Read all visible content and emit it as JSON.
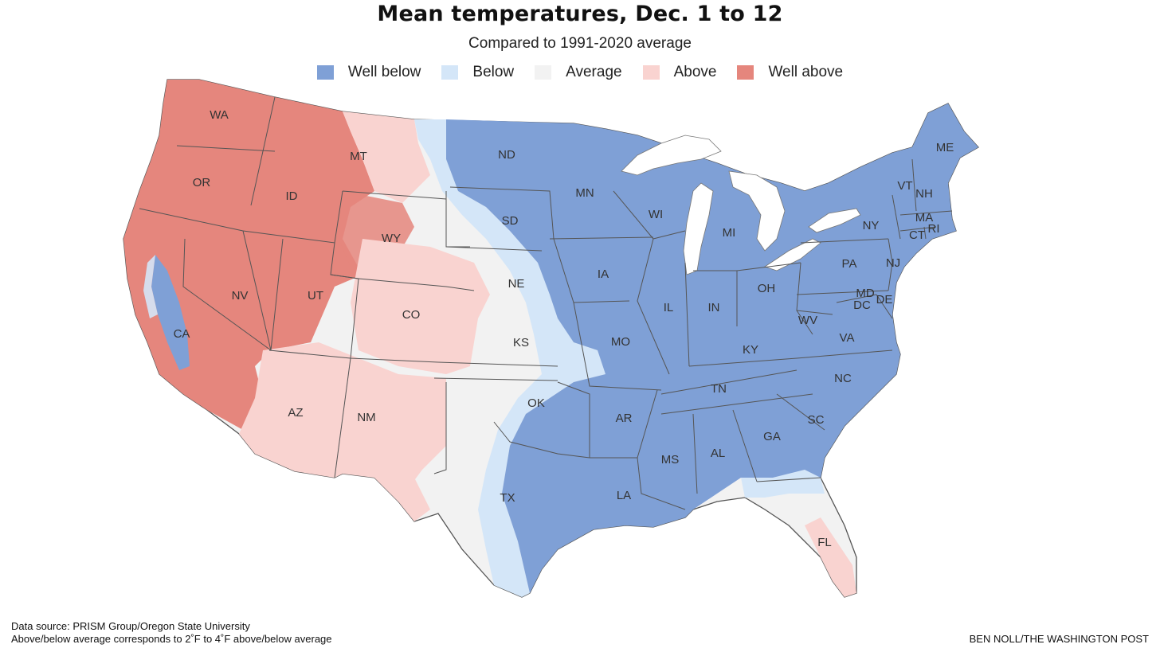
{
  "title": "Mean temperatures, Dec. 1 to 12",
  "subtitle": "Compared to 1991-2020 average",
  "colors": {
    "well_below": "#7fa0d6",
    "below": "#d4e6f8",
    "average": "#f2f2f2",
    "above": "#f9d3d0",
    "well_above": "#e5867d",
    "lakes": "#ffffff",
    "borders": "#555555"
  },
  "legend": [
    {
      "label": "Well below",
      "color": "#7fa0d6"
    },
    {
      "label": "Below",
      "color": "#d4e6f8"
    },
    {
      "label": "Average",
      "color": "#f2f2f2"
    },
    {
      "label": "Above",
      "color": "#f9d3d0"
    },
    {
      "label": "Well above",
      "color": "#e5867d"
    }
  ],
  "states": [
    "WA",
    "OR",
    "ID",
    "MT",
    "WY",
    "CA",
    "NV",
    "UT",
    "CO",
    "AZ",
    "NM",
    "ND",
    "SD",
    "NE",
    "KS",
    "OK",
    "TX",
    "MN",
    "IA",
    "MO",
    "AR",
    "LA",
    "WI",
    "IL",
    "MS",
    "MI",
    "IN",
    "KY",
    "TN",
    "AL",
    "OH",
    "WV",
    "VA",
    "NC",
    "SC",
    "GA",
    "FL",
    "PA",
    "NY",
    "VT",
    "NH",
    "ME",
    "MA",
    "CT",
    "RI",
    "NJ",
    "MD",
    "DE",
    "DC"
  ],
  "footer": {
    "source": "Data source: PRISM Group/Oregon State University",
    "note": "Above/below average corresponds to 2˚F to 4˚F above/below average",
    "credit": "BEN NOLL/THE WASHINGTON POST"
  }
}
